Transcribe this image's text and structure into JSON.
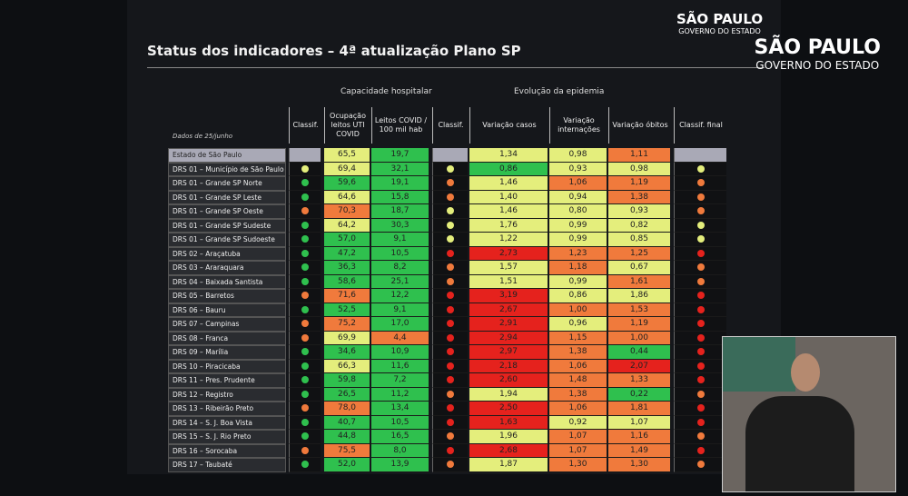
{
  "title": "Status dos indicadores – 4ª atualização Plano SP",
  "logo": {
    "name": "SÃO PAULO",
    "subtitle": "GOVERNO DO ESTADO"
  },
  "slide_logo": {
    "name": "SÃO PAULO",
    "subtitle": "GOVERNO DO ESTADO"
  },
  "groups": [
    "Capacidade hospitalar",
    "Evolução da epidemia"
  ],
  "table": {
    "date_label": "Dados de 25/junho",
    "headers": [
      "Classif.",
      "Ocupação leitos UTI COVID",
      "Leitos COVID / 100 mil hab",
      "Classif.",
      "Variação casos",
      "Variação internações",
      "Variação óbitos",
      "Classif. final"
    ],
    "rows": [
      {
        "name": "Estado de São Paulo",
        "values": [
          "65,5",
          "19,7",
          "1,34",
          "0,98",
          "1,11"
        ],
        "colors": [
          "yellow",
          "green",
          "yellow",
          "yellow",
          "orange"
        ],
        "dots": [
          null,
          null,
          null
        ]
      },
      {
        "name": "DRS 01 – Município de São Paulo",
        "values": [
          "69,4",
          "32,1",
          "0,86",
          "0,93",
          "0,98"
        ],
        "colors": [
          "yellow",
          "green",
          "green",
          "yellow",
          "yellow"
        ],
        "dots": [
          "yellow",
          "yellow",
          "yellow"
        ]
      },
      {
        "name": "DRS 01 – Grande SP Norte",
        "values": [
          "59,6",
          "19,1",
          "1,46",
          "1,06",
          "1,19"
        ],
        "colors": [
          "green",
          "green",
          "yellow",
          "orange",
          "orange"
        ],
        "dots": [
          "green",
          "orange",
          "orange"
        ]
      },
      {
        "name": "DRS 01 – Grande SP Leste",
        "values": [
          "64,6",
          "15,8",
          "1,40",
          "0,94",
          "1,38"
        ],
        "colors": [
          "yellow",
          "green",
          "yellow",
          "yellow",
          "orange"
        ],
        "dots": [
          "green",
          "orange",
          "orange"
        ]
      },
      {
        "name": "DRS 01 – Grande SP Oeste",
        "values": [
          "70,3",
          "18,7",
          "1,46",
          "0,80",
          "0,93"
        ],
        "colors": [
          "orange",
          "green",
          "yellow",
          "yellow",
          "yellow"
        ],
        "dots": [
          "orange",
          "yellow",
          "orange"
        ]
      },
      {
        "name": "DRS 01 – Grande SP Sudeste",
        "values": [
          "64,2",
          "30,3",
          "1,76",
          "0,99",
          "0,82"
        ],
        "colors": [
          "yellow",
          "green",
          "yellow",
          "yellow",
          "yellow"
        ],
        "dots": [
          "green",
          "yellow",
          "yellow"
        ]
      },
      {
        "name": "DRS 01 – Grande SP Sudoeste",
        "values": [
          "57,0",
          "9,1",
          "1,22",
          "0,99",
          "0,85"
        ],
        "colors": [
          "green",
          "green",
          "yellow",
          "yellow",
          "yellow"
        ],
        "dots": [
          "green",
          "yellow",
          "yellow"
        ]
      },
      {
        "name": "DRS 02 – Araçatuba",
        "values": [
          "47,2",
          "10,5",
          "2,73",
          "1,23",
          "1,25"
        ],
        "colors": [
          "green",
          "green",
          "red",
          "orange",
          "orange"
        ],
        "dots": [
          "green",
          "red",
          "red"
        ]
      },
      {
        "name": "DRS 03 – Araraquara",
        "values": [
          "36,3",
          "8,2",
          "1,57",
          "1,18",
          "0,67"
        ],
        "colors": [
          "green",
          "green",
          "yellow",
          "orange",
          "yellow"
        ],
        "dots": [
          "green",
          "orange",
          "orange"
        ]
      },
      {
        "name": "DRS 04 – Baixada Santista",
        "values": [
          "58,6",
          "25,1",
          "1,51",
          "0,99",
          "1,61"
        ],
        "colors": [
          "green",
          "green",
          "yellow",
          "yellow",
          "orange"
        ],
        "dots": [
          "green",
          "orange",
          "orange"
        ]
      },
      {
        "name": "DRS 05 – Barretos",
        "values": [
          "71,6",
          "12,2",
          "3,19",
          "0,86",
          "1,86"
        ],
        "colors": [
          "orange",
          "green",
          "red",
          "yellow",
          "yellow"
        ],
        "dots": [
          "orange",
          "red",
          "red"
        ]
      },
      {
        "name": "DRS 06 – Bauru",
        "values": [
          "52,5",
          "9,1",
          "2,67",
          "1,00",
          "1,53"
        ],
        "colors": [
          "green",
          "green",
          "red",
          "orange",
          "orange"
        ],
        "dots": [
          "green",
          "red",
          "red"
        ]
      },
      {
        "name": "DRS 07 – Campinas",
        "values": [
          "75,2",
          "17,0",
          "2,91",
          "0,96",
          "1,19"
        ],
        "colors": [
          "orange",
          "green",
          "red",
          "yellow",
          "orange"
        ],
        "dots": [
          "orange",
          "red",
          "red"
        ]
      },
      {
        "name": "DRS 08 – Franca",
        "values": [
          "69,9",
          "4,4",
          "2,94",
          "1,15",
          "1,00"
        ],
        "colors": [
          "yellow",
          "orange",
          "red",
          "orange",
          "orange"
        ],
        "dots": [
          "orange",
          "red",
          "red"
        ]
      },
      {
        "name": "DRS 09 – Marília",
        "values": [
          "34,6",
          "10,9",
          "2,97",
          "1,38",
          "0,44"
        ],
        "colors": [
          "green",
          "green",
          "red",
          "orange",
          "green"
        ],
        "dots": [
          "green",
          "red",
          "red"
        ]
      },
      {
        "name": "DRS 10 – Piracicaba",
        "values": [
          "66,3",
          "11,6",
          "2,18",
          "1,06",
          "2,07"
        ],
        "colors": [
          "yellow",
          "green",
          "red",
          "orange",
          "red"
        ],
        "dots": [
          "green",
          "red",
          "red"
        ]
      },
      {
        "name": "DRS 11 – Pres. Prudente",
        "values": [
          "59,8",
          "7,2",
          "2,60",
          "1,48",
          "1,33"
        ],
        "colors": [
          "green",
          "green",
          "red",
          "orange",
          "orange"
        ],
        "dots": [
          "green",
          "red",
          "red"
        ]
      },
      {
        "name": "DRS 12 – Registro",
        "values": [
          "26,5",
          "11,2",
          "1,94",
          "1,38",
          "0,22"
        ],
        "colors": [
          "green",
          "green",
          "yellow",
          "orange",
          "green"
        ],
        "dots": [
          "green",
          "orange",
          "orange"
        ]
      },
      {
        "name": "DRS 13 – Ribeirão Preto",
        "values": [
          "78,0",
          "13,4",
          "2,50",
          "1,06",
          "1,81"
        ],
        "colors": [
          "orange",
          "green",
          "red",
          "orange",
          "orange"
        ],
        "dots": [
          "orange",
          "red",
          "red"
        ]
      },
      {
        "name": "DRS 14 – S. J. Boa Vista",
        "values": [
          "40,7",
          "10,5",
          "1,63",
          "0,92",
          "1,07"
        ],
        "colors": [
          "green",
          "green",
          "red",
          "yellow",
          "yellow"
        ],
        "dots": [
          "green",
          "red",
          "red"
        ]
      },
      {
        "name": "DRS 15 – S. J. Rio Preto",
        "values": [
          "44,8",
          "16,5",
          "1,96",
          "1,07",
          "1,16"
        ],
        "colors": [
          "green",
          "green",
          "yellow",
          "orange",
          "orange"
        ],
        "dots": [
          "green",
          "orange",
          "orange"
        ]
      },
      {
        "name": "DRS 16 – Sorocaba",
        "values": [
          "75,5",
          "8,0",
          "2,68",
          "1,07",
          "1,49"
        ],
        "colors": [
          "orange",
          "green",
          "red",
          "orange",
          "orange"
        ],
        "dots": [
          "orange",
          "red",
          "red"
        ]
      },
      {
        "name": "DRS 17 – Taubaté",
        "values": [
          "52,0",
          "13,9",
          "1,87",
          "1,30",
          "1,30"
        ],
        "colors": [
          "green",
          "green",
          "yellow",
          "orange",
          "orange"
        ],
        "dots": [
          "green",
          "orange",
          "orange"
        ]
      }
    ]
  }
}
